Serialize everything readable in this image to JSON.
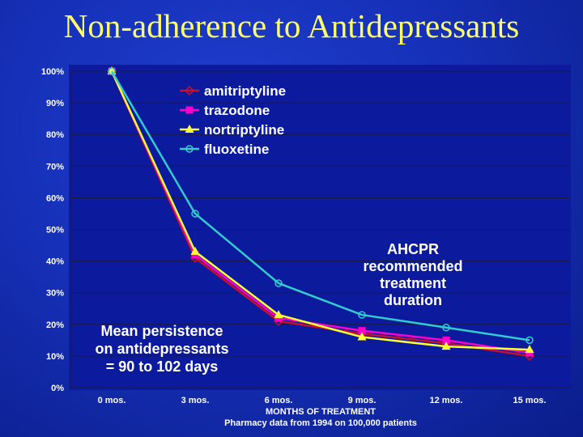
{
  "slide": {
    "title": "Non-adherence to Antidepressants",
    "annotation_ahcpr": [
      "AHCPR",
      "recommended",
      "treatment",
      "duration"
    ],
    "annotation_mean": [
      "Mean persistence",
      "on antidepressants",
      "= 90 to 102 days"
    ]
  },
  "chart_data": {
    "type": "line",
    "title": "",
    "xlabel": "MONTHS OF TREATMENT",
    "xlabel_sub": "Pharmacy data from 1994 on 100,000 patients",
    "ylabel": "",
    "categories": [
      "0 mos.",
      "3 mos.",
      "6 mos.",
      "9 mos.",
      "12 mos.",
      "15 mos."
    ],
    "yticks": [
      "0%",
      "10%",
      "20%",
      "30%",
      "40%",
      "50%",
      "60%",
      "70%",
      "80%",
      "90%",
      "100%"
    ],
    "ylim": [
      0,
      100
    ],
    "grid": true,
    "legend": "top-left",
    "series": [
      {
        "name": "amitriptyline",
        "values": [
          100,
          41,
          21,
          17,
          14,
          10
        ],
        "color": "#c8102e",
        "marker": "diamond"
      },
      {
        "name": "trazodone",
        "values": [
          100,
          42,
          22,
          18,
          15,
          11
        ],
        "color": "#ff00cc",
        "marker": "square"
      },
      {
        "name": "nortriptyline",
        "values": [
          100,
          43,
          23,
          16,
          13,
          12
        ],
        "color": "#ffff33",
        "marker": "triangle"
      },
      {
        "name": "fluoxetine",
        "values": [
          100,
          55,
          33,
          23,
          19,
          15
        ],
        "color": "#33cccc",
        "marker": "circle"
      }
    ]
  }
}
